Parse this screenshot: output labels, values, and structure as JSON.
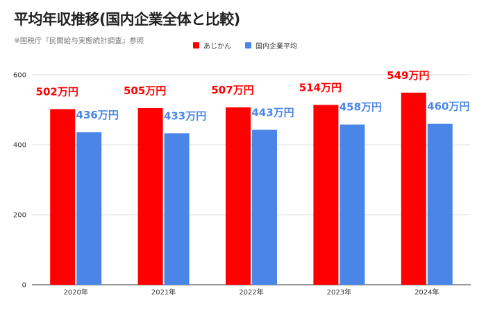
{
  "title": "平均年収推移(国内企業全体と比較)",
  "subtitle": "※国税庁『民間給与実態統計調査』参照",
  "colors": {
    "series_0": "#ff0000",
    "series_1": "#4a86e8",
    "grid": "#e0e0e0",
    "axis": "#333333"
  },
  "chart_data": {
    "type": "bar",
    "categories": [
      "2020年",
      "2021年",
      "2022年",
      "2023年",
      "2024年"
    ],
    "series": [
      {
        "name": "あじかん",
        "values": [
          502,
          505,
          507,
          514,
          549
        ],
        "labels": [
          "502万円",
          "505万円",
          "507万円",
          "514万円",
          "549万円"
        ]
      },
      {
        "name": "国内企業平均",
        "values": [
          436,
          433,
          443,
          458,
          460
        ],
        "labels": [
          "436万円",
          "433万円",
          "443万円",
          "458万円",
          "460万円"
        ]
      }
    ],
    "ylim": [
      0,
      600
    ],
    "yticks": [
      0,
      200,
      400,
      600
    ],
    "grid": true,
    "legend_position": "top"
  }
}
